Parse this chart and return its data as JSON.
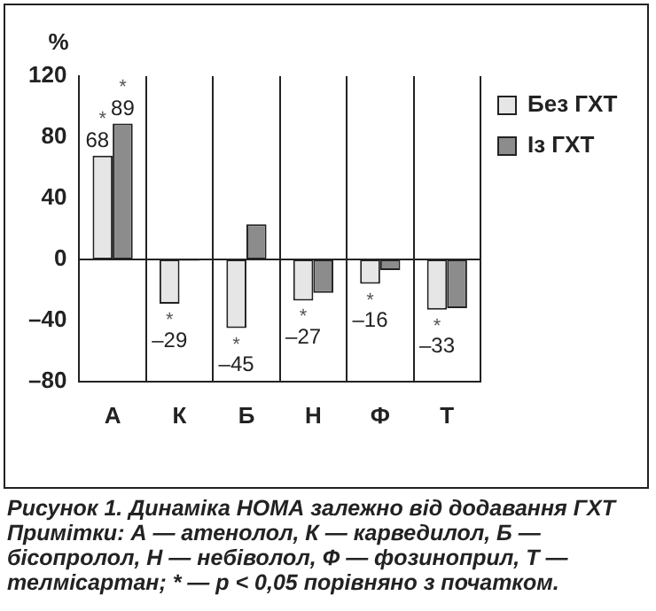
{
  "chart_data": {
    "type": "bar",
    "ylabel": "%",
    "categories": [
      "А",
      "К",
      "Б",
      "Н",
      "Ф",
      "Т"
    ],
    "series": [
      {
        "name": "Без ГХТ",
        "color": "#e6e6e6",
        "values": [
          68,
          -29,
          -45,
          -27,
          -16,
          -33
        ],
        "value_labels": [
          "*\n68",
          "*\n–29",
          "*\n–45",
          "*\n–27",
          "*\n–16",
          "*\n–33"
        ]
      },
      {
        "name": "Із ГХТ",
        "color": "#8c8c8c",
        "values": [
          89,
          -1,
          23,
          -22,
          -7,
          -32
        ],
        "value_labels": [
          "*\n89",
          null,
          null,
          null,
          null,
          null
        ]
      }
    ],
    "ylim": [
      -80,
      120
    ],
    "yticks": [
      {
        "value": -80,
        "label": "–80"
      },
      {
        "value": -40,
        "label": "–40"
      },
      0,
      40,
      80,
      120
    ],
    "grid": "x",
    "legend": "top right",
    "ref_lines": [
      {
        "axis": "y",
        "value": 0,
        "color": "#222222"
      }
    ],
    "annotations": [
      "Рисунок 1. Динаміка НОМА залежно від додавання ГХТ",
      "Примітки: А — атенолол, К — карведилол, Б — бісопролол, Н — небіволол, Ф — фозиноприл, Т — телмісартан; * — p < 0,05 порівняно з початком."
    ]
  }
}
